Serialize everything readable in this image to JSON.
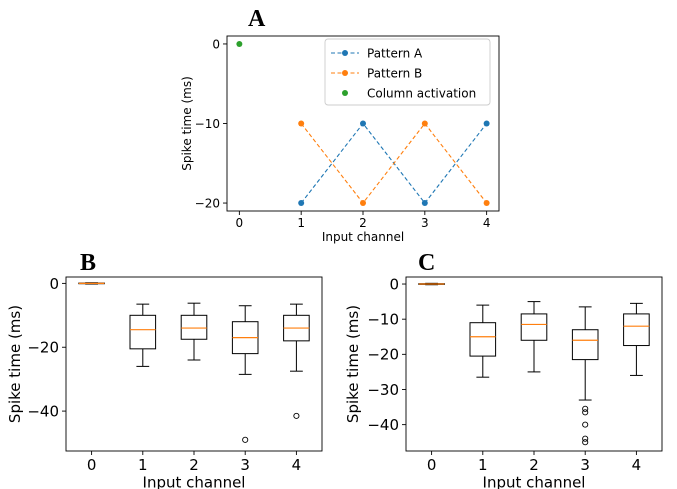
{
  "chart_data": [
    {
      "panel": "A",
      "type": "line",
      "xlabel": "Input channel",
      "ylabel": "Spike time (ms)",
      "xlim": [
        -0.2,
        4.2
      ],
      "ylim": [
        -21,
        1
      ],
      "xticks": [
        "0",
        "1",
        "2",
        "3",
        "4"
      ],
      "yticks": [
        "0",
        "−10",
        "−20"
      ],
      "legend_placement": "top-right",
      "series": [
        {
          "name": "Pattern A",
          "color": "#1f77b4",
          "style": "dashed-marker",
          "x": [
            1,
            2,
            3,
            4
          ],
          "y": [
            -20,
            -10,
            -20,
            -10
          ]
        },
        {
          "name": "Pattern B",
          "color": "#ff7f0e",
          "style": "dashed-marker",
          "x": [
            1,
            2,
            3,
            4
          ],
          "y": [
            -10,
            -20,
            -10,
            -20
          ]
        },
        {
          "name": "Column activation",
          "color": "#2ca02c",
          "style": "marker",
          "x": [
            0
          ],
          "y": [
            0
          ]
        }
      ]
    },
    {
      "panel": "B",
      "type": "box",
      "xlabel": "Input channel",
      "ylabel": "Spike time (ms)",
      "xlim": [
        -0.5,
        4.5
      ],
      "ylim": [
        -52.5,
        2
      ],
      "xticks": [
        "0",
        "1",
        "2",
        "3",
        "4"
      ],
      "yticks": [
        "0",
        "−20",
        "−40"
      ],
      "boxes": [
        {
          "x": 0,
          "whislo": -0.2,
          "q1": -0.1,
          "med": 0,
          "q3": 0.1,
          "whishi": 0.2,
          "fliers": []
        },
        {
          "x": 1,
          "whislo": -26,
          "q1": -20.5,
          "med": -14.5,
          "q3": -10,
          "whishi": -6.5,
          "fliers": []
        },
        {
          "x": 2,
          "whislo": -24,
          "q1": -17.5,
          "med": -14,
          "q3": -10,
          "whishi": -6.2,
          "fliers": []
        },
        {
          "x": 3,
          "whislo": -28.5,
          "q1": -22,
          "med": -17,
          "q3": -12,
          "whishi": -7,
          "fliers": [
            -49
          ]
        },
        {
          "x": 4,
          "whislo": -27.5,
          "q1": -18,
          "med": -14,
          "q3": -10,
          "whishi": -6.5,
          "fliers": [
            -41.5
          ]
        }
      ]
    },
    {
      "panel": "C",
      "type": "box",
      "xlabel": "Input channel",
      "ylabel": "Spike time (ms)",
      "xlim": [
        -0.5,
        4.5
      ],
      "ylim": [
        -47.5,
        2
      ],
      "xticks": [
        "0",
        "1",
        "2",
        "3",
        "4"
      ],
      "yticks": [
        "0",
        "−10",
        "−20",
        "−30",
        "−40"
      ],
      "boxes": [
        {
          "x": 0,
          "whislo": -0.2,
          "q1": -0.1,
          "med": 0,
          "q3": 0.1,
          "whishi": 0.2,
          "fliers": []
        },
        {
          "x": 1,
          "whislo": -26.5,
          "q1": -20.5,
          "med": -15,
          "q3": -11,
          "whishi": -6,
          "fliers": []
        },
        {
          "x": 2,
          "whislo": -25,
          "q1": -16,
          "med": -11.5,
          "q3": -8.5,
          "whishi": -5,
          "fliers": []
        },
        {
          "x": 3,
          "whislo": -33,
          "q1": -21.5,
          "med": -16,
          "q3": -13,
          "whishi": -6.5,
          "fliers": [
            -35.5,
            -36.5,
            -40,
            -44,
            -45
          ]
        },
        {
          "x": 4,
          "whislo": -26,
          "q1": -17.5,
          "med": -12,
          "q3": -8.5,
          "whishi": -5.5,
          "fliers": []
        }
      ]
    }
  ]
}
